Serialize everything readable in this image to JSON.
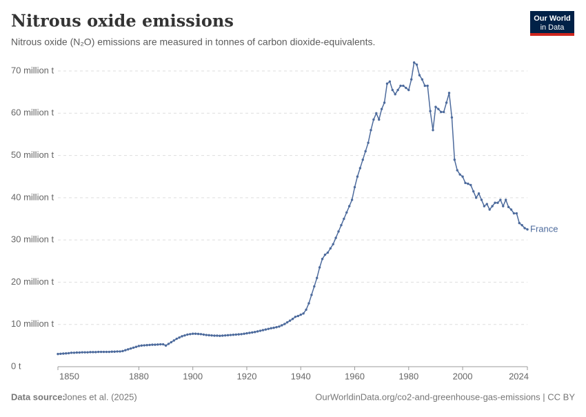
{
  "header": {
    "title": "Nitrous oxide emissions",
    "subtitle": "Nitrous oxide (N₂O) emissions are measured in tonnes of carbon dioxide-equivalents.",
    "logo": [
      "Our World",
      "in Data"
    ]
  },
  "chart_data": {
    "type": "line",
    "x": [
      1850,
      1851,
      1852,
      1853,
      1854,
      1855,
      1856,
      1857,
      1858,
      1859,
      1860,
      1861,
      1862,
      1863,
      1864,
      1865,
      1866,
      1867,
      1868,
      1869,
      1870,
      1871,
      1872,
      1873,
      1874,
      1875,
      1876,
      1877,
      1878,
      1879,
      1880,
      1881,
      1882,
      1883,
      1884,
      1885,
      1886,
      1887,
      1888,
      1889,
      1890,
      1891,
      1892,
      1893,
      1894,
      1895,
      1896,
      1897,
      1898,
      1899,
      1900,
      1901,
      1902,
      1903,
      1904,
      1905,
      1906,
      1907,
      1908,
      1909,
      1910,
      1911,
      1912,
      1913,
      1914,
      1915,
      1916,
      1917,
      1918,
      1919,
      1920,
      1921,
      1922,
      1923,
      1924,
      1925,
      1926,
      1927,
      1928,
      1929,
      1930,
      1931,
      1932,
      1933,
      1934,
      1935,
      1936,
      1937,
      1938,
      1939,
      1940,
      1941,
      1942,
      1943,
      1944,
      1945,
      1946,
      1947,
      1948,
      1949,
      1950,
      1951,
      1952,
      1953,
      1954,
      1955,
      1956,
      1957,
      1958,
      1959,
      1960,
      1961,
      1962,
      1963,
      1964,
      1965,
      1966,
      1967,
      1968,
      1969,
      1970,
      1971,
      1972,
      1973,
      1974,
      1975,
      1976,
      1977,
      1978,
      1979,
      1980,
      1981,
      1982,
      1983,
      1984,
      1985,
      1986,
      1987,
      1988,
      1989,
      1990,
      1991,
      1992,
      1993,
      1994,
      1995,
      1996,
      1997,
      1998,
      1999,
      2000,
      2001,
      2002,
      2003,
      2004,
      2005,
      2006,
      2007,
      2008,
      2009,
      2010,
      2011,
      2012,
      2013,
      2014,
      2015,
      2016,
      2017,
      2018,
      2019,
      2020,
      2021,
      2022,
      2023,
      2024
    ],
    "series": [
      {
        "name": "France",
        "color": "#4c6a9c",
        "values": [
          3000000,
          3050000,
          3100000,
          3150000,
          3200000,
          3300000,
          3300000,
          3350000,
          3350000,
          3400000,
          3400000,
          3400000,
          3450000,
          3450000,
          3450000,
          3500000,
          3500000,
          3500000,
          3500000,
          3500000,
          3550000,
          3550000,
          3600000,
          3600000,
          3700000,
          3900000,
          4100000,
          4300000,
          4500000,
          4700000,
          4900000,
          5000000,
          5050000,
          5100000,
          5150000,
          5200000,
          5200000,
          5250000,
          5300000,
          5300000,
          5000000,
          5400000,
          5800000,
          6200000,
          6600000,
          6900000,
          7200000,
          7400000,
          7600000,
          7700000,
          7800000,
          7800000,
          7750000,
          7700000,
          7600000,
          7500000,
          7450000,
          7400000,
          7350000,
          7350000,
          7300000,
          7350000,
          7400000,
          7450000,
          7500000,
          7550000,
          7600000,
          7650000,
          7700000,
          7800000,
          7900000,
          8000000,
          8100000,
          8200000,
          8350000,
          8500000,
          8650000,
          8800000,
          8950000,
          9100000,
          9200000,
          9350000,
          9500000,
          9800000,
          10100000,
          10500000,
          10900000,
          11300000,
          11800000,
          12000000,
          12300000,
          12600000,
          13500000,
          15000000,
          17000000,
          19000000,
          21000000,
          23500000,
          25500000,
          26500000,
          27000000,
          28000000,
          29000000,
          30500000,
          32000000,
          33500000,
          35000000,
          36500000,
          38000000,
          39500000,
          42500000,
          45000000,
          47000000,
          49000000,
          51000000,
          53000000,
          56000000,
          58500000,
          60000000,
          58500000,
          61000000,
          62500000,
          67000000,
          67500000,
          65500000,
          64500000,
          65500000,
          66500000,
          66500000,
          66000000,
          65500000,
          68000000,
          72000000,
          71500000,
          69000000,
          68000000,
          66500000,
          66500000,
          60500000,
          56000000,
          61500000,
          61000000,
          60300000,
          60300000,
          62500000,
          64800000,
          59000000,
          49000000,
          46500000,
          45500000,
          45000000,
          43500000,
          43300000,
          43000000,
          41500000,
          40000000,
          41000000,
          39500000,
          38000000,
          38500000,
          37200000,
          38000000,
          38800000,
          38800000,
          39500000,
          38000000,
          39500000,
          37800000,
          37200000,
          36300000,
          36300000,
          34000000,
          33500000,
          32800000,
          32500000
        ]
      }
    ],
    "xlim": [
      1850,
      2024
    ],
    "xticks": [
      1850,
      1880,
      1900,
      1920,
      1940,
      1960,
      1980,
      2000,
      2024
    ],
    "ylim": [
      0,
      70000000
    ],
    "yticks": [
      {
        "value": 0,
        "label": "0 t"
      },
      {
        "value": 10000000,
        "label": "10 million t"
      },
      {
        "value": 20000000,
        "label": "20 million t"
      },
      {
        "value": 30000000,
        "label": "30 million t"
      },
      {
        "value": 40000000,
        "label": "40 million t"
      },
      {
        "value": 50000000,
        "label": "50 million t"
      },
      {
        "value": 60000000,
        "label": "60 million t"
      },
      {
        "value": 70000000,
        "label": "70 million t"
      }
    ],
    "grid": true
  },
  "footer": {
    "source_label": "Data source:",
    "source": "Jones et al. (2025)",
    "url": "OurWorldinData.org/co2-and-greenhouse-gas-emissions | CC BY"
  }
}
